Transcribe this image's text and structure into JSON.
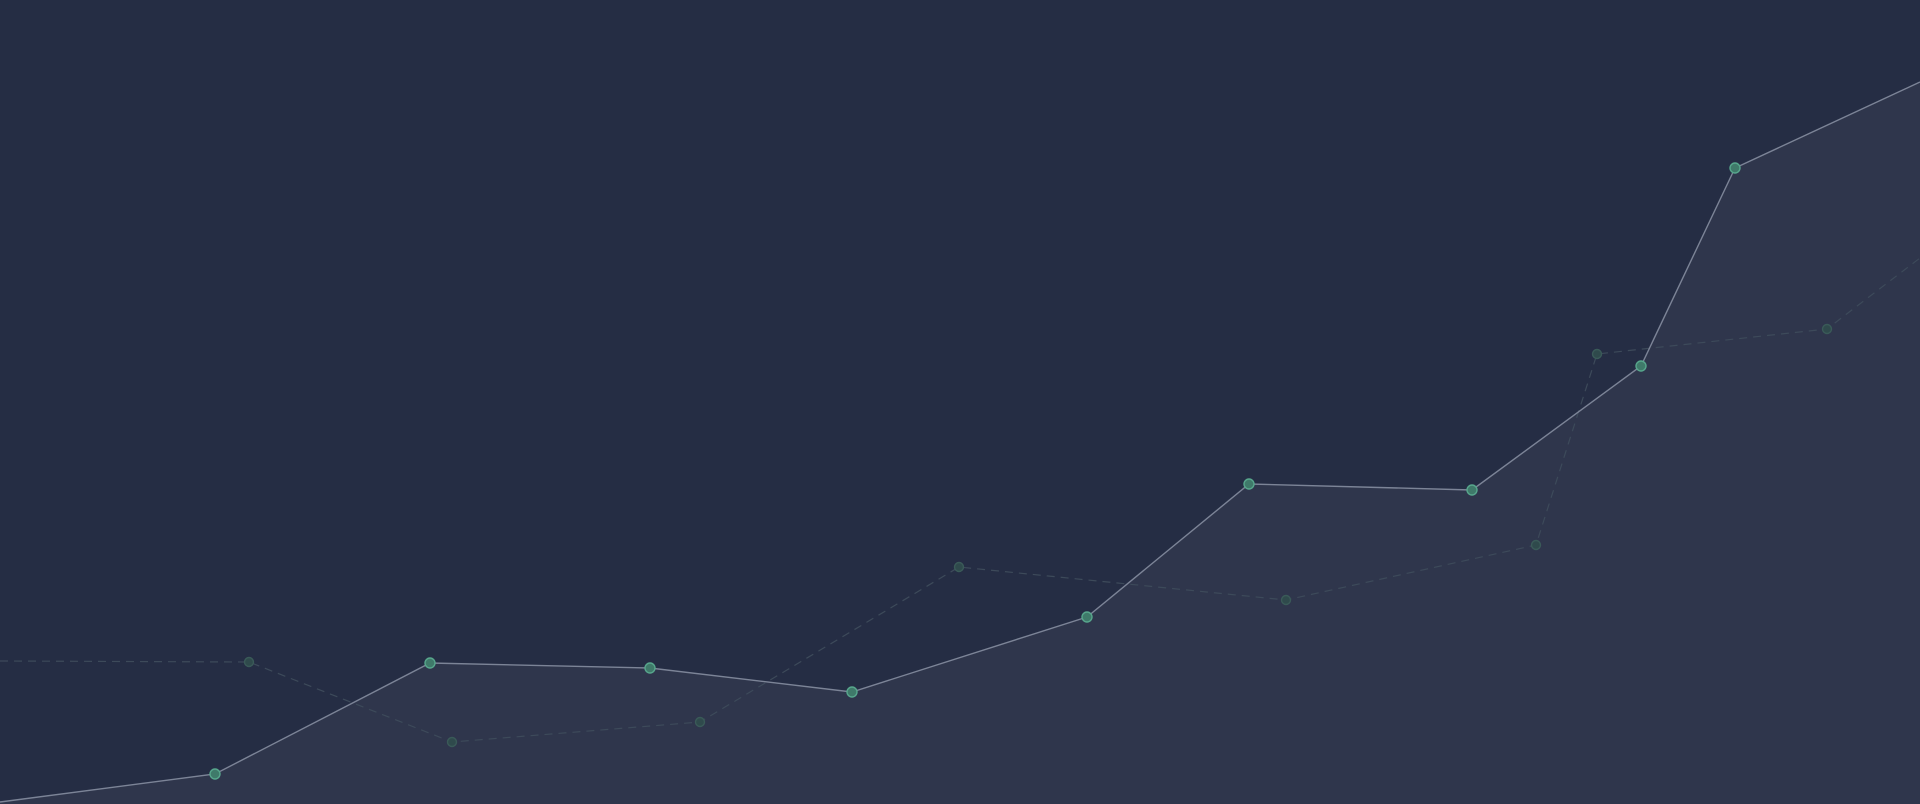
{
  "chart_data": {
    "type": "line",
    "title": "",
    "xlabel": "",
    "ylabel": "",
    "grid": false,
    "legend": "none",
    "xlim": [
      0,
      19.2
    ],
    "ylim": [
      0,
      8.04
    ],
    "series": [
      {
        "style": "solid",
        "area_fill": true,
        "line_color": "#7c8497",
        "marker_color": "#3f7a6a",
        "marker_stroke": "#57a68c",
        "fill_color": "#2f364c",
        "points": [
          {
            "x": 0.0,
            "y": 0.02
          },
          {
            "x": 2.15,
            "y": 0.3
          },
          {
            "x": 4.3,
            "y": 1.41
          },
          {
            "x": 6.5,
            "y": 1.36
          },
          {
            "x": 8.52,
            "y": 1.12
          },
          {
            "x": 10.87,
            "y": 1.87
          },
          {
            "x": 12.49,
            "y": 3.2
          },
          {
            "x": 14.72,
            "y": 3.14
          },
          {
            "x": 16.41,
            "y": 4.38
          },
          {
            "x": 17.35,
            "y": 6.36
          },
          {
            "x": 19.2,
            "y": 7.22
          }
        ]
      },
      {
        "style": "dashed",
        "area_fill": false,
        "line_color": "#3d4a5a",
        "marker_color": "#2f4a4c",
        "marker_stroke": "#3a5a58",
        "points": [
          {
            "x": 0.0,
            "y": 1.43
          },
          {
            "x": 2.49,
            "y": 1.42
          },
          {
            "x": 4.52,
            "y": 0.62
          },
          {
            "x": 7.0,
            "y": 0.82
          },
          {
            "x": 9.59,
            "y": 2.37
          },
          {
            "x": 12.86,
            "y": 2.04
          },
          {
            "x": 15.36,
            "y": 2.59
          },
          {
            "x": 15.97,
            "y": 4.5
          },
          {
            "x": 18.27,
            "y": 4.75
          },
          {
            "x": 19.2,
            "y": 5.46
          }
        ]
      }
    ]
  }
}
